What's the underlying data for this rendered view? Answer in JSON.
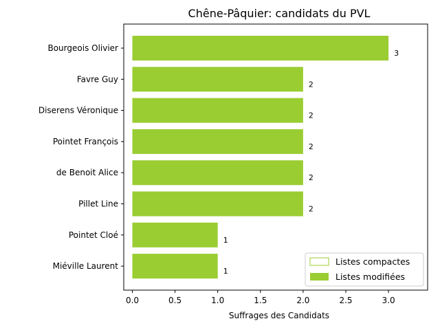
{
  "chart_data": {
    "type": "bar",
    "orientation": "horizontal",
    "title": "Chêne-Pâquier: candidats du PVL",
    "xlabel": "Suffrages des Candidats",
    "ylabel": "",
    "xlim": [
      0,
      3.45
    ],
    "xticks": [
      "0.0",
      "0.5",
      "1.0",
      "1.5",
      "2.0",
      "2.5",
      "3.0"
    ],
    "categories": [
      "Bourgeois Olivier",
      "Favre Guy",
      "Diserens Véronique",
      "Pointet François",
      "de Benoit Alice",
      "Pillet Line",
      "Pointet Cloé",
      "Miéville Laurent"
    ],
    "series": [
      {
        "name": "Listes compactes",
        "values": [
          0,
          0,
          0,
          0,
          0,
          0,
          0,
          0
        ],
        "color": "#9acd32",
        "style": "outline"
      },
      {
        "name": "Listes modifiées",
        "values": [
          3,
          2,
          2,
          2,
          2,
          2,
          1,
          1
        ],
        "color": "#9acd32",
        "style": "filled"
      }
    ],
    "data_labels": [
      "3",
      "2",
      "2",
      "2",
      "2",
      "2",
      "1",
      "1"
    ],
    "legend_position": "lower-right",
    "grid": false
  }
}
